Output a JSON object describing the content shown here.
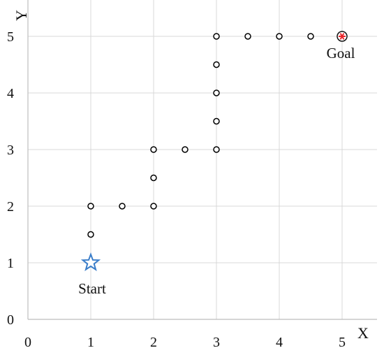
{
  "chart_data": {
    "type": "scatter",
    "xlabel": "X",
    "ylabel": "Y",
    "xlim": [
      0,
      5
    ],
    "ylim": [
      0,
      5
    ],
    "xticks": [
      "0",
      "1",
      "2",
      "3",
      "4",
      "5"
    ],
    "yticks": [
      "0",
      "1",
      "2",
      "3",
      "4",
      "5"
    ],
    "grid": true,
    "series": [
      {
        "marker": "circle",
        "color": "#000000",
        "points": [
          [
            1,
            1.5
          ],
          [
            1,
            2
          ],
          [
            1.5,
            2
          ],
          [
            2,
            2
          ],
          [
            2,
            2.5
          ],
          [
            2,
            3
          ],
          [
            2.5,
            3
          ],
          [
            3,
            3
          ],
          [
            3,
            3.5
          ],
          [
            3,
            4
          ],
          [
            3,
            4.5
          ],
          [
            3,
            5
          ],
          [
            3.5,
            5
          ],
          [
            4,
            5
          ],
          [
            4.5,
            5
          ]
        ]
      }
    ],
    "start": {
      "x": 1,
      "y": 1,
      "label": "Start",
      "marker": "star",
      "color": "#3a7dc9"
    },
    "goal": {
      "x": 5,
      "y": 5,
      "label": "Goal",
      "marker": "circled-asterisk",
      "color": "#e8262b"
    }
  }
}
